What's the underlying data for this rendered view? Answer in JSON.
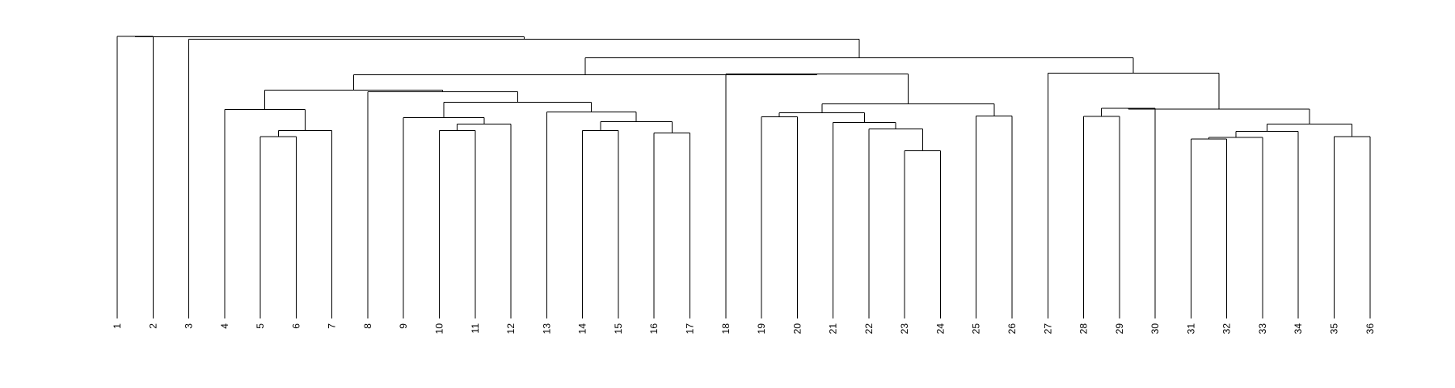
{
  "leaf_labels": [
    "1",
    "2",
    "3",
    "4",
    "5",
    "6",
    "7",
    "8",
    "9",
    "10",
    "11",
    "12",
    "13",
    "14",
    "15",
    "16",
    "17",
    "18",
    "19",
    "20",
    "21",
    "22",
    "23",
    "24",
    "25",
    "26",
    "27",
    "28",
    "29",
    "30",
    "31",
    "32",
    "33",
    "34",
    "35",
    "36"
  ],
  "merges": [
    {
      "a": "L1",
      "b": "L2",
      "h": 0.9227
    },
    {
      "a": "L5",
      "b": "L6",
      "h": 0.5947
    },
    {
      "a": "M2",
      "b": "L7",
      "h": 0.6153
    },
    {
      "a": "L4",
      "b": "M3",
      "h": 0.6843
    },
    {
      "a": "L10",
      "b": "L11",
      "h": 0.6153
    },
    {
      "a": "M5",
      "b": "L12",
      "h": 0.6365
    },
    {
      "a": "L9",
      "b": "M6",
      "h": 0.6577
    },
    {
      "a": "L14",
      "b": "L15",
      "h": 0.6153
    },
    {
      "a": "L16",
      "b": "L17",
      "h": 0.6074
    },
    {
      "a": "M8",
      "b": "M9",
      "h": 0.6443
    },
    {
      "a": "L13",
      "b": "M10",
      "h": 0.6761
    },
    {
      "a": "M7",
      "b": "M11",
      "h": 0.7079
    },
    {
      "a": "L8",
      "b": "M12",
      "h": 0.7424
    },
    {
      "a": "M4",
      "b": "M13",
      "h": 0.7477
    },
    {
      "a": "L19",
      "b": "L20",
      "h": 0.6604
    },
    {
      "a": "L23",
      "b": "L24",
      "h": 0.5496
    },
    {
      "a": "L22",
      "b": "M16",
      "h": 0.6206
    },
    {
      "a": "L21",
      "b": "M17",
      "h": 0.6418
    },
    {
      "a": "M15",
      "b": "M18",
      "h": 0.6737
    },
    {
      "a": "L25",
      "b": "L26",
      "h": 0.6631
    },
    {
      "a": "M19",
      "b": "M20",
      "h": 0.7026
    },
    {
      "a": "L18",
      "b": "M21",
      "h": 0.8001
    },
    {
      "a": "M14",
      "b": "M22",
      "h": 0.7981
    },
    {
      "a": "L28",
      "b": "L29",
      "h": 0.6618
    },
    {
      "a": "M24",
      "b": "L30",
      "h": 0.6883
    },
    {
      "a": "L31",
      "b": "L32",
      "h": 0.5868
    },
    {
      "a": "M26",
      "b": "L33",
      "h": 0.5921
    },
    {
      "a": "L35",
      "b": "L36",
      "h": 0.5947
    },
    {
      "a": "M27",
      "b": "L34",
      "h": 0.6127
    },
    {
      "a": "M29",
      "b": "M28",
      "h": 0.6365
    },
    {
      "a": "M25",
      "b": "M30",
      "h": 0.6856
    },
    {
      "a": "L27",
      "b": "M31",
      "h": 0.8034
    },
    {
      "a": "M23",
      "b": "M32",
      "h": 0.8532
    },
    {
      "a": "L3",
      "b": "M33",
      "h": 0.9141
    },
    {
      "a": "M1",
      "b": "M34",
      "h": 0.922
    }
  ],
  "y_range": [
    0,
    1
  ]
}
